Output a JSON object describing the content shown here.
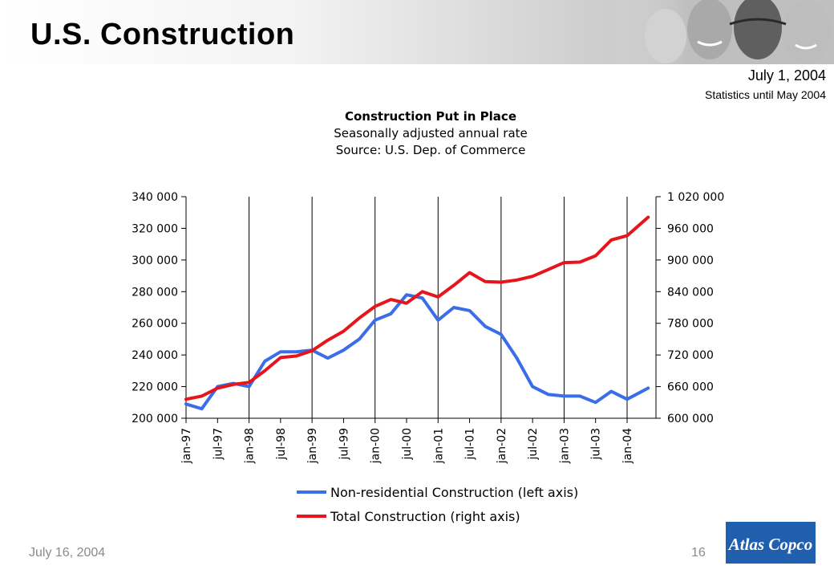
{
  "slide": {
    "title": "U.S. Construction",
    "date": "July 1, 2004",
    "stats_note": "Statistics until May 2004",
    "footer_date": "July 16, 2004",
    "page_number": "16",
    "logo_text": "Atlas Copco"
  },
  "colors": {
    "non_residential": "#3a6ee8",
    "total": "#e8141c",
    "logo_blue": "#1f5fae"
  },
  "chart_data": {
    "type": "line",
    "title": "Construction Put in Place",
    "subtitle": [
      "Seasonally adjusted annual rate",
      "Source: U.S. Dep. of Commerce"
    ],
    "legend_position": "bottom",
    "x_tick_labels": [
      "jan-97",
      "jul-97",
      "jan-98",
      "jul-98",
      "jan-99",
      "jul-99",
      "jan-00",
      "jul-00",
      "jan-01",
      "jul-01",
      "jan-02",
      "jul-02",
      "jan-03",
      "jul-03",
      "jan-04"
    ],
    "x_range": [
      "jan-97",
      "may-04"
    ],
    "left_axis": {
      "range": [
        200000,
        340000
      ],
      "ticks": [
        200000,
        220000,
        240000,
        260000,
        280000,
        300000,
        320000,
        340000
      ],
      "tick_labels": [
        "200 000",
        "220 000",
        "240 000",
        "260 000",
        "280 000",
        "300 000",
        "320 000",
        "340 000"
      ]
    },
    "right_axis": {
      "range": [
        600000,
        1020000
      ],
      "ticks": [
        600000,
        660000,
        720000,
        780000,
        840000,
        900000,
        960000,
        1020000
      ],
      "tick_labels": [
        "600 000",
        "660 000",
        "720 000",
        "780 000",
        "840 000",
        "900 000",
        "960 000",
        "1 020 000"
      ]
    },
    "vertical_gridlines_at": [
      "jan-98",
      "jan-99",
      "jan-00",
      "jan-01",
      "jan-02",
      "jan-03",
      "jan-04"
    ],
    "series": [
      {
        "name": "Non-residential Construction (left axis)",
        "axis": "left",
        "color": "#3a6ee8",
        "points": [
          [
            "jan-97",
            209000
          ],
          [
            "apr-97",
            206000
          ],
          [
            "jul-97",
            220000
          ],
          [
            "oct-97",
            222000
          ],
          [
            "jan-98",
            220000
          ],
          [
            "apr-98",
            236000
          ],
          [
            "jul-98",
            242000
          ],
          [
            "oct-98",
            242000
          ],
          [
            "jan-99",
            243000
          ],
          [
            "apr-99",
            238000
          ],
          [
            "jul-99",
            243000
          ],
          [
            "oct-99",
            250000
          ],
          [
            "jan-00",
            262000
          ],
          [
            "apr-00",
            266000
          ],
          [
            "jul-00",
            278000
          ],
          [
            "oct-00",
            276000
          ],
          [
            "jan-01",
            262000
          ],
          [
            "apr-01",
            270000
          ],
          [
            "jul-01",
            268000
          ],
          [
            "oct-01",
            258000
          ],
          [
            "jan-02",
            253000
          ],
          [
            "apr-02",
            238000
          ],
          [
            "jul-02",
            220000
          ],
          [
            "oct-02",
            215000
          ],
          [
            "jan-03",
            214000
          ],
          [
            "apr-03",
            214000
          ],
          [
            "jul-03",
            210000
          ],
          [
            "oct-03",
            217000
          ],
          [
            "jan-04",
            212000
          ],
          [
            "may-04",
            219000
          ]
        ]
      },
      {
        "name": "Total Construction (right axis)",
        "axis": "right",
        "color": "#e8141c",
        "points": [
          [
            "jan-97",
            636000
          ],
          [
            "apr-97",
            642000
          ],
          [
            "jul-97",
            657000
          ],
          [
            "oct-97",
            664000
          ],
          [
            "jan-98",
            668000
          ],
          [
            "apr-98",
            690000
          ],
          [
            "jul-98",
            715000
          ],
          [
            "oct-98",
            718000
          ],
          [
            "jan-99",
            728000
          ],
          [
            "apr-99",
            748000
          ],
          [
            "jul-99",
            765000
          ],
          [
            "oct-99",
            790000
          ],
          [
            "jan-00",
            812000
          ],
          [
            "apr-00",
            825000
          ],
          [
            "jul-00",
            818000
          ],
          [
            "oct-00",
            840000
          ],
          [
            "jan-01",
            830000
          ],
          [
            "apr-01",
            852000
          ],
          [
            "jul-01",
            876000
          ],
          [
            "oct-01",
            859000
          ],
          [
            "jan-02",
            858000
          ],
          [
            "apr-02",
            862000
          ],
          [
            "jul-02",
            869000
          ],
          [
            "oct-02",
            882000
          ],
          [
            "jan-03",
            895000
          ],
          [
            "apr-03",
            896000
          ],
          [
            "jul-03",
            908000
          ],
          [
            "oct-03",
            938000
          ],
          [
            "jan-04",
            946000
          ],
          [
            "may-04",
            981000
          ]
        ]
      }
    ]
  }
}
